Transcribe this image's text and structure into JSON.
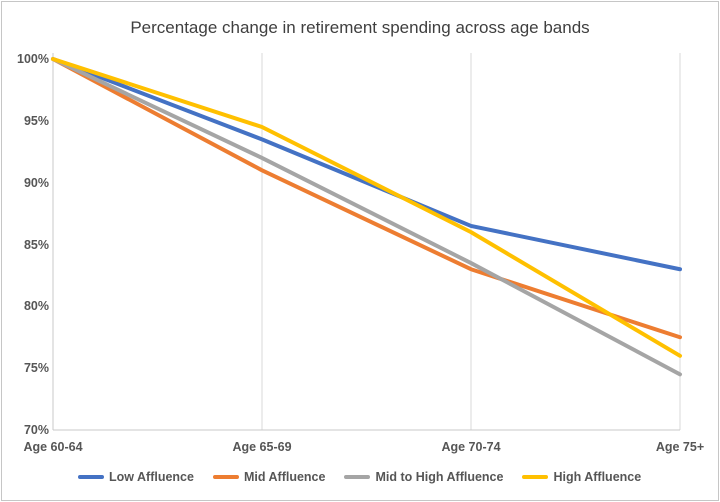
{
  "chart_data": {
    "type": "line",
    "title": "Percentage change in retirement spending across age bands",
    "categories": [
      "Age 60-64",
      "Age 65-69",
      "Age 70-74",
      "Age 75+"
    ],
    "series": [
      {
        "name": "Low Affluence",
        "color": "#4472C4",
        "values": [
          100,
          93.5,
          86.5,
          83
        ]
      },
      {
        "name": "Mid Affluence",
        "color": "#ED7D31",
        "values": [
          100,
          91,
          83,
          77.5
        ]
      },
      {
        "name": "Mid to High Affluence",
        "color": "#A5A5A5",
        "values": [
          100,
          92,
          83.5,
          74.5
        ]
      },
      {
        "name": "High Affluence",
        "color": "#FFC000",
        "values": [
          100,
          94.5,
          86,
          76
        ]
      }
    ],
    "ylim": [
      70,
      100
    ],
    "yticks": [
      {
        "value": 100,
        "label": "100%"
      },
      {
        "value": 95,
        "label": "95%"
      },
      {
        "value": 90,
        "label": "90%"
      },
      {
        "value": 85,
        "label": "85%"
      },
      {
        "value": 80,
        "label": "80%"
      },
      {
        "value": 75,
        "label": "75%"
      },
      {
        "value": 70,
        "label": "70%"
      }
    ],
    "grid": "vertical-only",
    "legend_position": "bottom",
    "colors": {
      "gridline": "#D9D9D9",
      "axis_line": "#C9C9C9",
      "axis_text": "#565656",
      "title_text": "#3F3F3F",
      "background": "#FFFFFF",
      "border": "#C6C6C6"
    }
  }
}
